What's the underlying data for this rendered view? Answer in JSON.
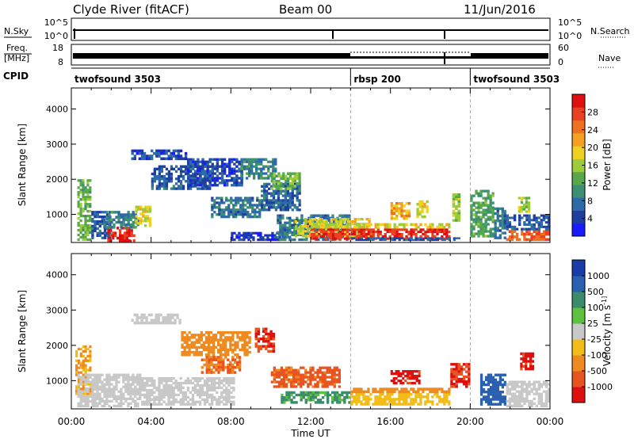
{
  "header": {
    "station": "Clyde River (fitACF)",
    "beam": "Beam 00",
    "date": "11/Jun/2016"
  },
  "noise_panel": {
    "left_label": "N.Sky",
    "left_ticks": [
      "10^5",
      "10^0"
    ],
    "right_label": "N.Search",
    "right_ticks": [
      "10^5",
      "10^0"
    ]
  },
  "freq_panel": {
    "left_label_1": "Freq.",
    "left_label_2": "[MHz]",
    "left_ticks": [
      "18",
      "8"
    ],
    "right_label": "Nave",
    "right_ticks": [
      "60",
      "0"
    ]
  },
  "cpid": {
    "label": "CPID",
    "segments": [
      {
        "name": "twofsound 3503",
        "start_h": 0,
        "end_h": 14
      },
      {
        "name": "rbsp 200",
        "start_h": 14,
        "end_h": 20
      },
      {
        "name": "twofsound 3503",
        "start_h": 20,
        "end_h": 24
      }
    ]
  },
  "x_axis": {
    "label": "Time UT",
    "ticks": [
      "00:00",
      "04:00",
      "08:00",
      "12:00",
      "16:00",
      "20:00",
      "00:00"
    ]
  },
  "colors": {
    "power": [
      "#1a1aff",
      "#1f3f9f",
      "#2e6aa8",
      "#3c8f70",
      "#56a84a",
      "#9ccc3c",
      "#f0d020",
      "#f5a021",
      "#ef7020",
      "#e84020",
      "#e01010"
    ],
    "velocity": [
      "#1a3ca8",
      "#2a60b0",
      "#3a8c6a",
      "#5cc040",
      "#c8c8c8",
      "#f2bd18",
      "#ee8a20",
      "#e85420",
      "#dd1010"
    ]
  },
  "chart_data": [
    {
      "type": "heatmap",
      "name": "power",
      "xlabel": "Time UT",
      "ylabel": "Slant Range [km]",
      "xlim": [
        0,
        24
      ],
      "ylim": [
        200,
        4600
      ],
      "yticks": [
        "1000",
        "2000",
        "3000",
        "4000"
      ],
      "colorbar": {
        "label": "Power [dB]",
        "range": [
          0,
          32
        ],
        "ticks": [
          "4",
          "8",
          "12",
          "16",
          "20",
          "24",
          "28"
        ]
      },
      "regions": [
        {
          "t": [
            0.3,
            1.0
          ],
          "r": [
            250,
            2000
          ],
          "v": 14
        },
        {
          "t": [
            1.0,
            2.0
          ],
          "r": [
            300,
            1100
          ],
          "v": 6
        },
        {
          "t": [
            1.8,
            3.2
          ],
          "r": [
            220,
            650
          ],
          "v": 30
        },
        {
          "t": [
            1.6,
            3.4
          ],
          "r": [
            600,
            1100
          ],
          "v": 9
        },
        {
          "t": [
            3.2,
            4.0
          ],
          "r": [
            650,
            1250
          ],
          "v": 18
        },
        {
          "t": [
            3.0,
            5.8
          ],
          "r": [
            2550,
            2850
          ],
          "v": 5
        },
        {
          "t": [
            4.0,
            7.0
          ],
          "r": [
            1700,
            2400
          ],
          "v": 6
        },
        {
          "t": [
            5.8,
            8.6
          ],
          "r": [
            1800,
            2600
          ],
          "v": 5
        },
        {
          "t": [
            7.0,
            9.5
          ],
          "r": [
            900,
            1500
          ],
          "v": 8
        },
        {
          "t": [
            8.5,
            10.3
          ],
          "r": [
            2000,
            2600
          ],
          "v": 9
        },
        {
          "t": [
            9.5,
            11.5
          ],
          "r": [
            1100,
            1900
          ],
          "v": 7
        },
        {
          "t": [
            10.0,
            11.5
          ],
          "r": [
            1700,
            2200
          ],
          "v": 14
        },
        {
          "t": [
            8.0,
            10.5
          ],
          "r": [
            250,
            500
          ],
          "v": 4
        },
        {
          "t": [
            10.3,
            14.0
          ],
          "r": [
            250,
            1000
          ],
          "v": 8
        },
        {
          "t": [
            11.2,
            15.0
          ],
          "r": [
            350,
            900
          ],
          "v": 18
        },
        {
          "t": [
            12.0,
            19.0
          ],
          "r": [
            280,
            600
          ],
          "v": 29
        },
        {
          "t": [
            12.0,
            19.0
          ],
          "r": [
            600,
            750
          ],
          "v": 18
        },
        {
          "t": [
            14.0,
            19.5
          ],
          "r": [
            250,
            350
          ],
          "v": 6
        },
        {
          "t": [
            16.0,
            17.0
          ],
          "r": [
            850,
            1350
          ],
          "v": 22
        },
        {
          "t": [
            17.3,
            17.9
          ],
          "r": [
            900,
            1400
          ],
          "v": 18
        },
        {
          "t": [
            19.1,
            19.5
          ],
          "r": [
            800,
            1600
          ],
          "v": 16
        },
        {
          "t": [
            20.0,
            21.2
          ],
          "r": [
            350,
            1700
          ],
          "v": 12
        },
        {
          "t": [
            21.2,
            21.8
          ],
          "r": [
            300,
            1200
          ],
          "v": 8
        },
        {
          "t": [
            21.8,
            24.0
          ],
          "r": [
            250,
            550
          ],
          "v": 26
        },
        {
          "t": [
            21.8,
            24.0
          ],
          "r": [
            550,
            1000
          ],
          "v": 6
        },
        {
          "t": [
            22.4,
            23.0
          ],
          "r": [
            1050,
            1500
          ],
          "v": 16
        }
      ]
    },
    {
      "type": "heatmap",
      "name": "velocity",
      "xlabel": "Time UT",
      "ylabel": "Slant Range [km]",
      "xlim": [
        0,
        24
      ],
      "ylim": [
        200,
        4600
      ],
      "yticks": [
        "1000",
        "2000",
        "3000",
        "4000"
      ],
      "colorbar": {
        "label": "Velocity [m s^-1]",
        "ticks": [
          "1000",
          "500",
          "100",
          "25",
          "-25",
          "-100",
          "-500",
          "-1000"
        ]
      },
      "regions": [
        {
          "t": [
            0.2,
            1.0
          ],
          "r": [
            600,
            2000
          ],
          "v": -100
        },
        {
          "t": [
            0.3,
            3.5
          ],
          "r": [
            250,
            1200
          ],
          "v": 0
        },
        {
          "t": [
            3.5,
            8.2
          ],
          "r": [
            300,
            1100
          ],
          "v": 0
        },
        {
          "t": [
            3.0,
            5.5
          ],
          "r": [
            2600,
            2900
          ],
          "v": 0
        },
        {
          "t": [
            5.5,
            9.0
          ],
          "r": [
            1700,
            2400
          ],
          "v": -300
        },
        {
          "t": [
            6.5,
            8.5
          ],
          "r": [
            1200,
            1700
          ],
          "v": -500
        },
        {
          "t": [
            9.2,
            10.2
          ],
          "r": [
            1800,
            2500
          ],
          "v": -800
        },
        {
          "t": [
            10.0,
            13.5
          ],
          "r": [
            800,
            1400
          ],
          "v": -600
        },
        {
          "t": [
            10.5,
            14.0
          ],
          "r": [
            350,
            700
          ],
          "v": 60
        },
        {
          "t": [
            14.0,
            19.0
          ],
          "r": [
            300,
            650
          ],
          "v": -80
        },
        {
          "t": [
            14.0,
            19.0
          ],
          "r": [
            650,
            800
          ],
          "v": -300
        },
        {
          "t": [
            16.0,
            17.5
          ],
          "r": [
            900,
            1300
          ],
          "v": -900
        },
        {
          "t": [
            19.0,
            20.0
          ],
          "r": [
            800,
            1500
          ],
          "v": -800
        },
        {
          "t": [
            20.5,
            21.8
          ],
          "r": [
            300,
            1200
          ],
          "v": 200
        },
        {
          "t": [
            21.8,
            24.0
          ],
          "r": [
            250,
            1000
          ],
          "v": 0
        },
        {
          "t": [
            22.5,
            23.2
          ],
          "r": [
            1300,
            1800
          ],
          "v": -900
        }
      ]
    }
  ]
}
